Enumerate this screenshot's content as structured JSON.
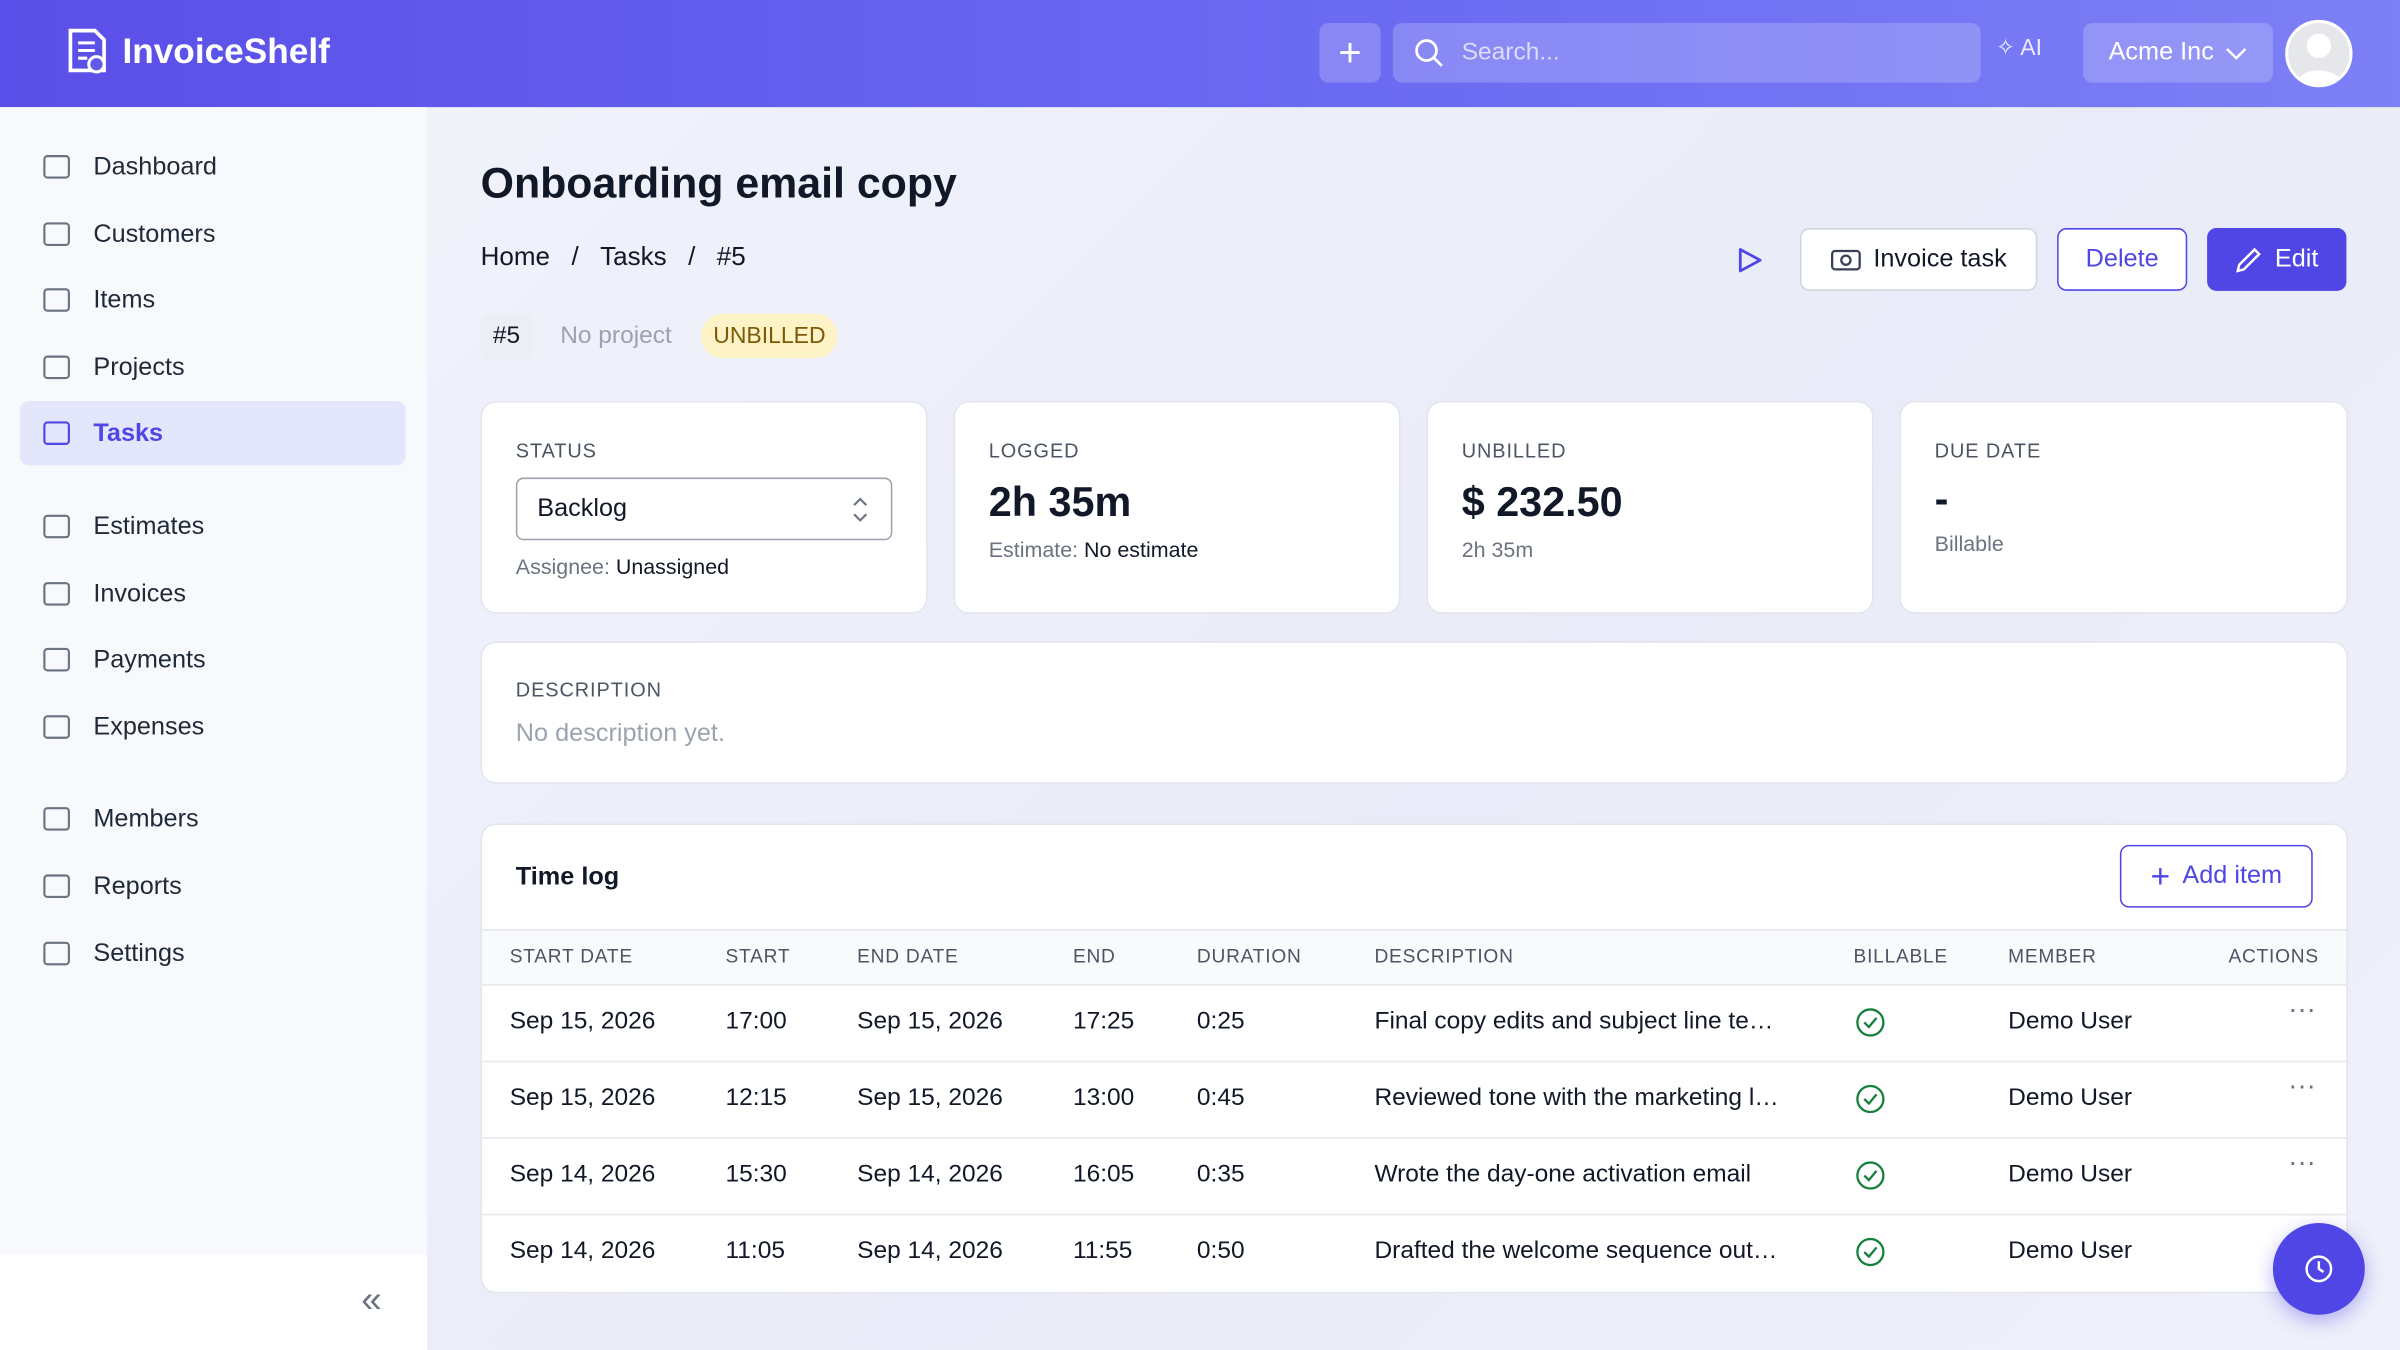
{
  "header": {
    "brand": "InvoiceShelf",
    "search_placeholder": "Search...",
    "ai": "AI",
    "company": "Acme Inc"
  },
  "sidebar": {
    "groups": [
      [
        {
          "label": "Dashboard"
        },
        {
          "label": "Customers"
        },
        {
          "label": "Items"
        },
        {
          "label": "Projects"
        },
        {
          "label": "Tasks",
          "active": true
        }
      ],
      [
        {
          "label": "Estimates"
        },
        {
          "label": "Invoices"
        },
        {
          "label": "Payments"
        },
        {
          "label": "Expenses"
        }
      ],
      [
        {
          "label": "Members"
        },
        {
          "label": "Reports"
        },
        {
          "label": "Settings"
        }
      ]
    ]
  },
  "page": {
    "title": "Onboarding email copy",
    "breadcrumbs": [
      "Home",
      "Tasks",
      "#5"
    ],
    "tags": {
      "id": "#5",
      "project": "No project",
      "billing": "UNBILLED"
    },
    "actions": {
      "invoice": "Invoice task",
      "delete": "Delete",
      "edit": "Edit"
    }
  },
  "cards": {
    "status": {
      "label": "STATUS",
      "value": "Backlog",
      "assignee_label": "Assignee:",
      "assignee": "Unassigned"
    },
    "logged": {
      "label": "LOGGED",
      "value": "2h 35m",
      "estimate_label": "Estimate:",
      "estimate": "No estimate"
    },
    "unbilled": {
      "label": "UNBILLED",
      "value": "$ 232.50",
      "sub": "2h 35m"
    },
    "due": {
      "label": "DUE DATE",
      "value": "-",
      "sub": "Billable"
    }
  },
  "description": {
    "label": "DESCRIPTION",
    "text": "No description yet."
  },
  "time_log": {
    "title": "Time log",
    "add": "Add item",
    "columns": [
      "START DATE",
      "START",
      "END DATE",
      "END",
      "DURATION",
      "DESCRIPTION",
      "BILLABLE",
      "MEMBER",
      "ACTIONS"
    ],
    "rows": [
      [
        "Sep 15, 2026",
        "17:00",
        "Sep 15, 2026",
        "17:25",
        "0:25",
        "Final copy edits and subject line te…",
        true,
        "Demo User"
      ],
      [
        "Sep 15, 2026",
        "12:15",
        "Sep 15, 2026",
        "13:00",
        "0:45",
        "Reviewed tone with the marketing l…",
        true,
        "Demo User"
      ],
      [
        "Sep 14, 2026",
        "15:30",
        "Sep 14, 2026",
        "16:05",
        "0:35",
        "Wrote the day-one activation email",
        true,
        "Demo User"
      ],
      [
        "Sep 14, 2026",
        "11:05",
        "Sep 14, 2026",
        "11:55",
        "0:50",
        "Drafted the welcome sequence out…",
        true,
        "Demo User"
      ]
    ]
  }
}
